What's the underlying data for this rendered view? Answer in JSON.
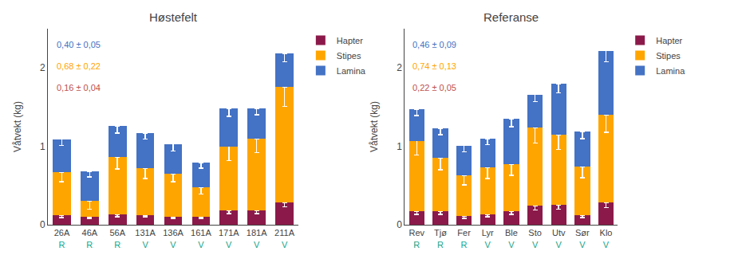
{
  "chart_data": [
    {
      "type": "bar",
      "stacked": true,
      "title": "Høstefelt",
      "ylabel": "Våtvekt (kg)",
      "categories": [
        "26A",
        "46A",
        "56A",
        "131A",
        "136A",
        "161A",
        "171A",
        "181A",
        "211A"
      ],
      "regions": {
        "labels": [
          "R",
          "R",
          "R",
          "V",
          "V",
          "V",
          "V",
          "V",
          "V"
        ],
        "color": "#17A589"
      },
      "series": [
        {
          "name": "Hapter",
          "color": "#8B1A4A",
          "values": [
            0.12,
            0.1,
            0.13,
            0.12,
            0.1,
            0.1,
            0.18,
            0.18,
            0.28
          ],
          "error_lower": [
            0.03,
            0.02,
            0.03,
            0.02,
            0.02,
            0.02,
            0.04,
            0.04,
            0.05
          ]
        },
        {
          "name": "Stipes",
          "color": "#FFA500",
          "values": [
            0.55,
            0.2,
            0.73,
            0.6,
            0.55,
            0.38,
            0.82,
            0.92,
            1.48
          ],
          "error_lower": [
            0.12,
            0.1,
            0.15,
            0.13,
            0.1,
            0.09,
            0.18,
            0.18,
            0.25
          ]
        },
        {
          "name": "Lamina",
          "color": "#4472C4",
          "values": [
            0.42,
            0.38,
            0.4,
            0.45,
            0.38,
            0.31,
            0.48,
            0.38,
            0.42
          ],
          "error_lower": [
            0.08,
            0.07,
            0.09,
            0.08,
            0.09,
            0.07,
            0.1,
            0.08,
            0.1
          ]
        }
      ],
      "annotations": [
        {
          "text": "0,40 ± 0,05",
          "color": "#4472C4"
        },
        {
          "text": "0,68 ± 0,22",
          "color": "#FFA500"
        },
        {
          "text": "0,16 ± 0,04",
          "color": "#C0504D"
        }
      ],
      "ylim": [
        0,
        2.5
      ],
      "yticks": [
        0,
        1,
        2
      ],
      "grid": false,
      "legend": "upper right"
    },
    {
      "type": "bar",
      "stacked": true,
      "title": "Referanse",
      "ylabel": "Våtvekt (kg)",
      "categories": [
        "Rev",
        "Tjø",
        "Fer",
        "Lyr",
        "Ble",
        "Sto",
        "Utv",
        "Sør",
        "Klo"
      ],
      "regions": {
        "labels": [
          "R",
          "R",
          "R",
          "V",
          "V",
          "V",
          "V",
          "V",
          "V"
        ],
        "color": "#17A589"
      },
      "series": [
        {
          "name": "Hapter",
          "color": "#8B1A4A",
          "values": [
            0.17,
            0.17,
            0.11,
            0.13,
            0.17,
            0.24,
            0.25,
            0.12,
            0.28
          ],
          "error_lower": [
            0.04,
            0.04,
            0.03,
            0.03,
            0.04,
            0.05,
            0.05,
            0.03,
            0.06
          ]
        },
        {
          "name": "Stipes",
          "color": "#FFA500",
          "values": [
            0.9,
            0.68,
            0.52,
            0.6,
            0.6,
            1.0,
            0.9,
            0.62,
            1.12
          ],
          "error_lower": [
            0.18,
            0.15,
            0.12,
            0.14,
            0.14,
            0.2,
            0.19,
            0.14,
            0.22
          ]
        },
        {
          "name": "Lamina",
          "color": "#4472C4",
          "values": [
            0.4,
            0.38,
            0.38,
            0.37,
            0.58,
            0.42,
            0.65,
            0.45,
            0.82
          ],
          "error_lower": [
            0.08,
            0.08,
            0.08,
            0.08,
            0.1,
            0.09,
            0.12,
            0.09,
            0.14
          ]
        }
      ],
      "annotations": [
        {
          "text": "0,46 ± 0,09",
          "color": "#4472C4"
        },
        {
          "text": "0,74 ± 0,13",
          "color": "#FFA500"
        },
        {
          "text": "0,22 ± 0,05",
          "color": "#C0504D"
        }
      ],
      "ylim": [
        0,
        2.5
      ],
      "yticks": [
        0,
        1,
        2
      ],
      "grid": false,
      "legend": "upper right"
    }
  ]
}
